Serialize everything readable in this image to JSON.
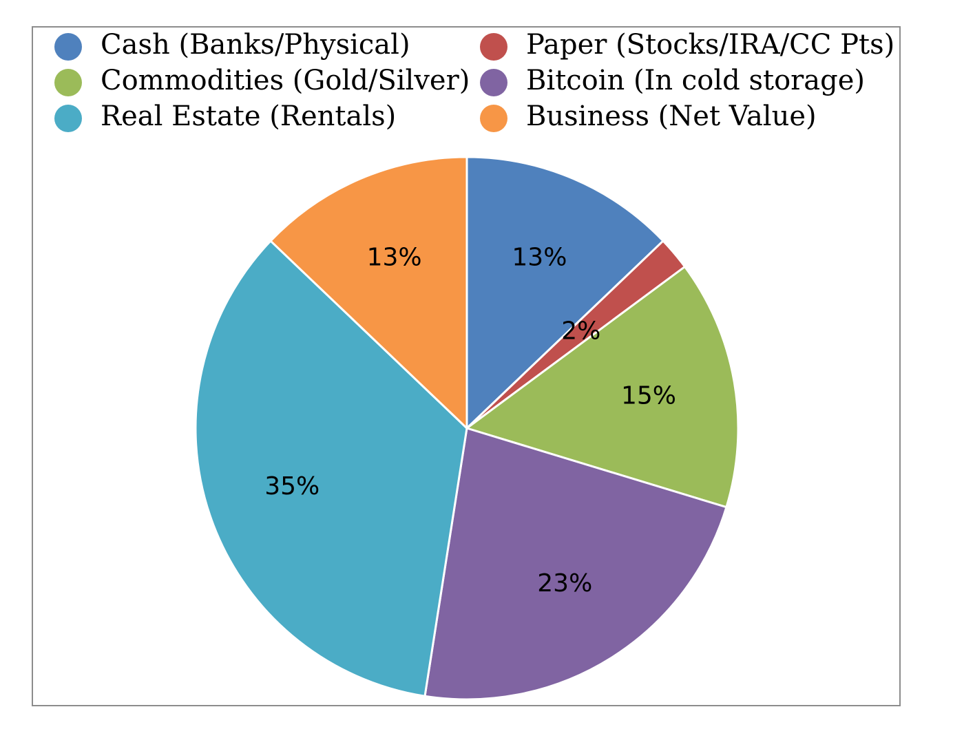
{
  "chart_data": {
    "type": "pie",
    "title": "",
    "start_angle_deg": 90,
    "direction": "clockwise",
    "legend_position": "top",
    "legend_columns": 2,
    "slices": [
      {
        "name": "Cash (Banks/Physical)",
        "value": 13,
        "label": "13%",
        "color": "#4F81BD"
      },
      {
        "name": "Paper (Stocks/IRA/CC Pts)",
        "value": 2,
        "label": "2%",
        "color": "#C0504D"
      },
      {
        "name": "Commodities (Gold/Silver)",
        "value": 15,
        "label": "15%",
        "color": "#9BBB59"
      },
      {
        "name": "Bitcoin (In cold storage)",
        "value": 23,
        "label": "23%",
        "color": "#8064A2"
      },
      {
        "name": "Real Estate (Rentals)",
        "value": 35,
        "label": "35%",
        "color": "#4BACC6"
      },
      {
        "name": "Business (Net Value)",
        "value": 13,
        "label": "13%",
        "color": "#F79646"
      }
    ],
    "legend_order": [
      "Cash (Banks/Physical)",
      "Paper (Stocks/IRA/CC Pts)",
      "Commodities (Gold/Silver)",
      "Bitcoin (In cold storage)",
      "Real Estate (Rentals)",
      "Business (Net Value)"
    ]
  }
}
